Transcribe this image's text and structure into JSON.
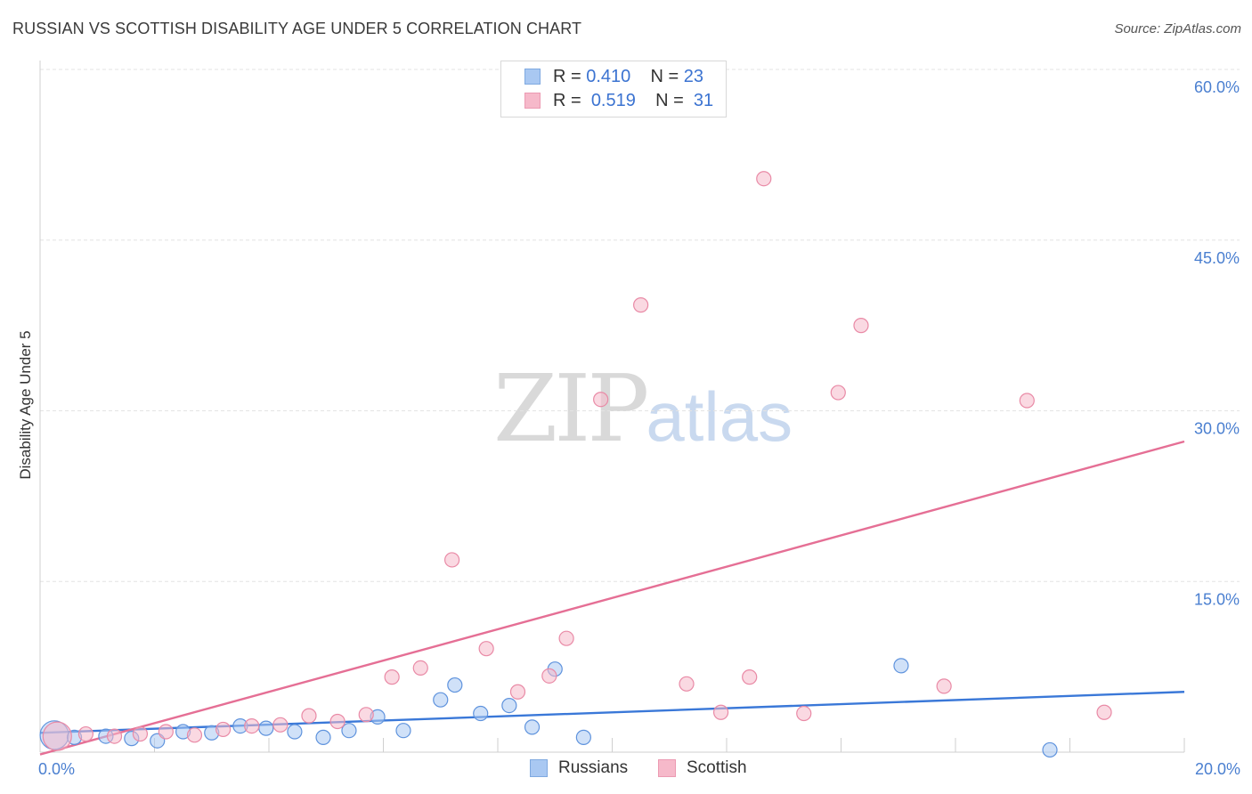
{
  "header": {
    "title": "RUSSIAN VS SCOTTISH DISABILITY AGE UNDER 5 CORRELATION CHART",
    "source": "Source: ZipAtlas.com"
  },
  "watermark": {
    "zip": "ZIP",
    "atlas": "atlas"
  },
  "legend": {
    "russians": {
      "r_label": "R = ",
      "r_value": "0.410",
      "n_label": "N = ",
      "n_value": "23",
      "color": "#a9c8f2"
    },
    "scottish": {
      "r_label": "R = ",
      "r_value": "0.519",
      "n_label": "N = ",
      "n_value": "31",
      "color": "#f6b9ca"
    }
  },
  "bottom_legend": {
    "russians": "Russians",
    "scottish": "Scottish"
  },
  "chart_data": {
    "type": "scatter",
    "title": "RUSSIAN VS SCOTTISH DISABILITY AGE UNDER 5 CORRELATION CHART",
    "xlabel": "",
    "ylabel": "Disability Age Under 5",
    "xlim": [
      0,
      20
    ],
    "ylim": [
      0,
      60
    ],
    "x_tick_labels": [
      "0.0%",
      "20.0%"
    ],
    "y_ticks": [
      15,
      30,
      45,
      60
    ],
    "y_tick_labels": [
      "15.0%",
      "30.0%",
      "45.0%",
      "60.0%"
    ],
    "grid": true,
    "series": [
      {
        "name": "Russians",
        "color": "#a9c8f2",
        "stroke": "#5f93dd",
        "trend": {
          "x": [
            0,
            20
          ],
          "y": [
            1.7,
            5.3
          ],
          "color": "#3a78d8"
        },
        "points": [
          {
            "x": 0.25,
            "y": 1.5,
            "big": true
          },
          {
            "x": 0.6,
            "y": 1.3
          },
          {
            "x": 1.15,
            "y": 1.4
          },
          {
            "x": 1.6,
            "y": 1.2
          },
          {
            "x": 2.05,
            "y": 1.0
          },
          {
            "x": 2.5,
            "y": 1.8
          },
          {
            "x": 3.0,
            "y": 1.7
          },
          {
            "x": 3.5,
            "y": 2.3
          },
          {
            "x": 3.95,
            "y": 2.1
          },
          {
            "x": 4.45,
            "y": 1.8
          },
          {
            "x": 4.95,
            "y": 1.3
          },
          {
            "x": 5.4,
            "y": 1.9
          },
          {
            "x": 5.9,
            "y": 3.1
          },
          {
            "x": 6.35,
            "y": 1.9
          },
          {
            "x": 7.0,
            "y": 4.6
          },
          {
            "x": 7.25,
            "y": 5.9
          },
          {
            "x": 7.7,
            "y": 3.4
          },
          {
            "x": 8.2,
            "y": 4.1
          },
          {
            "x": 8.6,
            "y": 2.2
          },
          {
            "x": 9.0,
            "y": 7.3
          },
          {
            "x": 9.5,
            "y": 1.3
          },
          {
            "x": 15.05,
            "y": 7.6
          },
          {
            "x": 17.65,
            "y": 0.2
          }
        ]
      },
      {
        "name": "Scottish",
        "color": "#f6b9ca",
        "stroke": "#e98aa6",
        "trend": {
          "x": [
            0,
            20
          ],
          "y": [
            -0.2,
            27.3
          ],
          "color": "#e56f95"
        },
        "points": [
          {
            "x": 0.3,
            "y": 1.4,
            "big": true
          },
          {
            "x": 0.8,
            "y": 1.6
          },
          {
            "x": 1.3,
            "y": 1.4
          },
          {
            "x": 1.75,
            "y": 1.6
          },
          {
            "x": 2.2,
            "y": 1.8
          },
          {
            "x": 2.7,
            "y": 1.5
          },
          {
            "x": 3.2,
            "y": 2.0
          },
          {
            "x": 3.7,
            "y": 2.3
          },
          {
            "x": 4.2,
            "y": 2.4
          },
          {
            "x": 4.7,
            "y": 3.2
          },
          {
            "x": 5.2,
            "y": 2.7
          },
          {
            "x": 5.7,
            "y": 3.3
          },
          {
            "x": 6.15,
            "y": 6.6
          },
          {
            "x": 6.65,
            "y": 7.4
          },
          {
            "x": 7.2,
            "y": 16.9
          },
          {
            "x": 7.8,
            "y": 9.1
          },
          {
            "x": 8.35,
            "y": 5.3
          },
          {
            "x": 8.9,
            "y": 6.7
          },
          {
            "x": 9.2,
            "y": 10.0
          },
          {
            "x": 9.8,
            "y": 31.0
          },
          {
            "x": 10.5,
            "y": 39.3
          },
          {
            "x": 11.3,
            "y": 6.0
          },
          {
            "x": 11.9,
            "y": 3.5
          },
          {
            "x": 12.4,
            "y": 6.6
          },
          {
            "x": 12.65,
            "y": 50.4
          },
          {
            "x": 13.35,
            "y": 3.4
          },
          {
            "x": 13.95,
            "y": 31.6
          },
          {
            "x": 14.35,
            "y": 37.5
          },
          {
            "x": 15.8,
            "y": 5.8
          },
          {
            "x": 17.25,
            "y": 30.9
          },
          {
            "x": 18.6,
            "y": 3.5
          }
        ]
      }
    ]
  }
}
